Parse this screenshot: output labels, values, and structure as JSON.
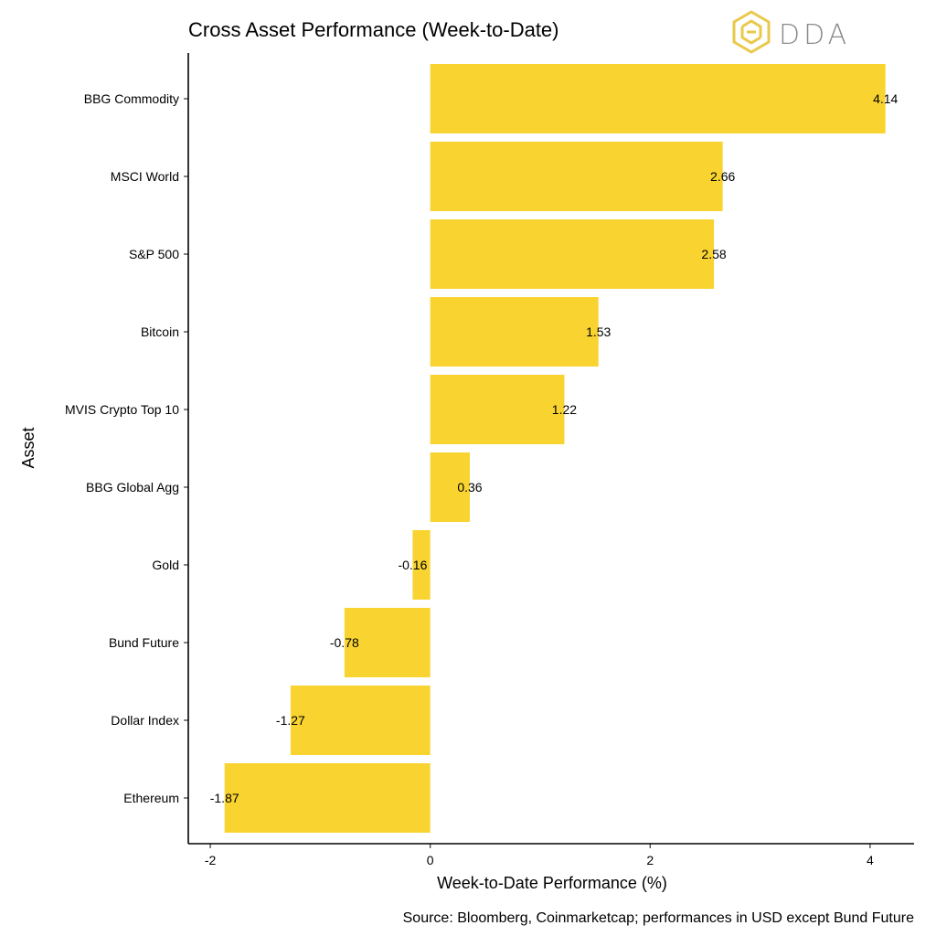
{
  "chart_data": {
    "type": "bar",
    "orientation": "horizontal",
    "title": "Cross Asset Performance (Week-to-Date)",
    "xlabel": "Week-to-Date Performance (%)",
    "ylabel": "Asset",
    "caption": "Source: Bloomberg, Coinmarketcap; performances in USD except Bund Future",
    "categories": [
      "BBG Commodity",
      "MSCI World",
      "S&P 500",
      "Bitcoin",
      "MVIS Crypto Top 10",
      "BBG Global Agg",
      "Gold",
      "Bund Future",
      "Dollar Index",
      "Ethereum"
    ],
    "values": [
      4.14,
      2.66,
      2.58,
      1.53,
      1.22,
      0.36,
      -0.16,
      -0.78,
      -1.27,
      -1.87
    ],
    "data_labels": [
      "4.14",
      "2.66",
      "2.58",
      "1.53",
      "1.22",
      "0.36",
      "-0.16",
      "-0.78",
      "-1.27",
      "-1.87"
    ],
    "xlim": [
      -2.2,
      4.4
    ],
    "xticks": [
      -2,
      0,
      2,
      4
    ],
    "xtick_labels": [
      "-2",
      "0",
      "2",
      "4"
    ],
    "grid": false,
    "legend": "none",
    "bar_color": "#F9D431"
  },
  "logo": {
    "text": "DDA",
    "color": "#E9C84A",
    "text_color": "#8A8A8A"
  }
}
